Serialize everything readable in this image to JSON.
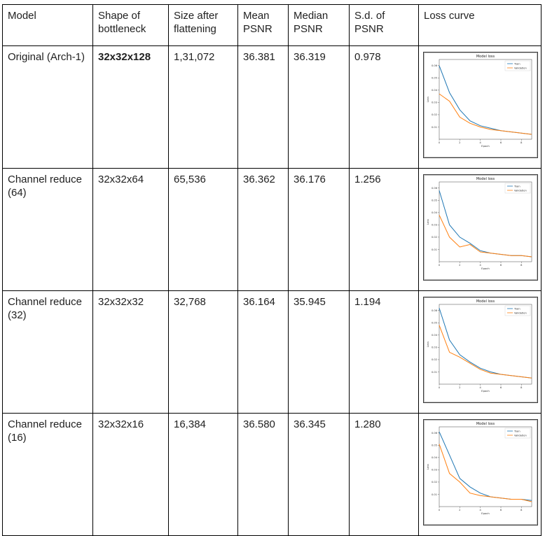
{
  "headers": [
    "Model",
    "Shape of bottleneck",
    "Size after flattening",
    "Mean PSNR",
    "Median PSNR",
    "S.d. of PSNR",
    "Loss curve"
  ],
  "rows": [
    {
      "model": "Original (Arch-1)",
      "shape": "32x32x128",
      "size": "1,31,072",
      "mean": "36.381",
      "median": "36.319",
      "sd": "0.978"
    },
    {
      "model": "Channel reduce (64)",
      "shape": "32x32x64",
      "size": "65,536",
      "mean": "36.362",
      "median": "36.176",
      "sd": "1.256"
    },
    {
      "model": "Channel reduce (32)",
      "shape": "32x32x32",
      "size": "32,768",
      "mean": "36.164",
      "median": "35.945",
      "sd": "1.194"
    },
    {
      "model": "Channel reduce (16)",
      "shape": "32x32x16",
      "size": "16,384",
      "mean": "36.580",
      "median": "36.345",
      "sd": "1.280"
    }
  ],
  "chart_data": [
    {
      "type": "line",
      "title": "Model loss",
      "xlabel": "Epoch",
      "ylabel": "Loss",
      "x": [
        0,
        1,
        2,
        3,
        4,
        5,
        6,
        7,
        8,
        9
      ],
      "xticks": [
        0,
        2,
        4,
        6,
        8
      ],
      "yticks": [
        0.01,
        0.02,
        0.03,
        0.04,
        0.05,
        0.06
      ],
      "ylim": [
        0.0,
        0.065
      ],
      "series": [
        {
          "name": "Train",
          "color": "#1f77b4",
          "values": [
            0.06,
            0.038,
            0.024,
            0.015,
            0.011,
            0.009,
            0.007,
            0.006,
            0.005,
            0.004
          ]
        },
        {
          "name": "Validation",
          "color": "#ff7f0e",
          "values": [
            0.037,
            0.031,
            0.018,
            0.013,
            0.01,
            0.008,
            0.007,
            0.006,
            0.005,
            0.004
          ]
        }
      ]
    },
    {
      "type": "line",
      "title": "Model loss",
      "xlabel": "Epoch",
      "ylabel": "Loss",
      "x": [
        0,
        1,
        2,
        3,
        4,
        5,
        6,
        7,
        8,
        9
      ],
      "xticks": [
        0,
        2,
        4,
        6,
        8
      ],
      "yticks": [
        0.01,
        0.02,
        0.03,
        0.04,
        0.05,
        0.06
      ],
      "ylim": [
        0.0,
        0.065
      ],
      "series": [
        {
          "name": "Train",
          "color": "#1f77b4",
          "values": [
            0.058,
            0.03,
            0.02,
            0.015,
            0.009,
            0.007,
            0.006,
            0.005,
            0.005,
            0.004
          ]
        },
        {
          "name": "Validation",
          "color": "#ff7f0e",
          "values": [
            0.038,
            0.02,
            0.012,
            0.014,
            0.008,
            0.007,
            0.006,
            0.005,
            0.005,
            0.004
          ]
        }
      ]
    },
    {
      "type": "line",
      "title": "Model loss",
      "xlabel": "Epoch",
      "ylabel": "Loss",
      "x": [
        0,
        1,
        2,
        3,
        4,
        5,
        6,
        7,
        8,
        9
      ],
      "xticks": [
        0,
        2,
        4,
        6,
        8
      ],
      "yticks": [
        0.01,
        0.02,
        0.03,
        0.04,
        0.05,
        0.06
      ],
      "ylim": [
        0.0,
        0.065
      ],
      "series": [
        {
          "name": "Train",
          "color": "#1f77b4",
          "values": [
            0.062,
            0.036,
            0.024,
            0.018,
            0.013,
            0.01,
            0.008,
            0.007,
            0.006,
            0.005
          ]
        },
        {
          "name": "Validation",
          "color": "#ff7f0e",
          "values": [
            0.048,
            0.026,
            0.022,
            0.017,
            0.012,
            0.009,
            0.008,
            0.007,
            0.006,
            0.005
          ]
        }
      ]
    },
    {
      "type": "line",
      "title": "Model loss",
      "xlabel": "Epoch",
      "ylabel": "Loss",
      "x": [
        0,
        1,
        2,
        3,
        4,
        5,
        6,
        7,
        8,
        9
      ],
      "xticks": [
        0,
        2,
        4,
        6,
        8
      ],
      "yticks": [
        0.01,
        0.02,
        0.03,
        0.04,
        0.05,
        0.06
      ],
      "ylim": [
        0.0,
        0.065
      ],
      "series": [
        {
          "name": "Train",
          "color": "#1f77b4",
          "values": [
            0.061,
            0.042,
            0.023,
            0.016,
            0.011,
            0.008,
            0.007,
            0.006,
            0.006,
            0.005
          ]
        },
        {
          "name": "Validation",
          "color": "#ff7f0e",
          "values": [
            0.051,
            0.027,
            0.02,
            0.011,
            0.009,
            0.008,
            0.007,
            0.006,
            0.006,
            0.004
          ]
        }
      ]
    }
  ]
}
